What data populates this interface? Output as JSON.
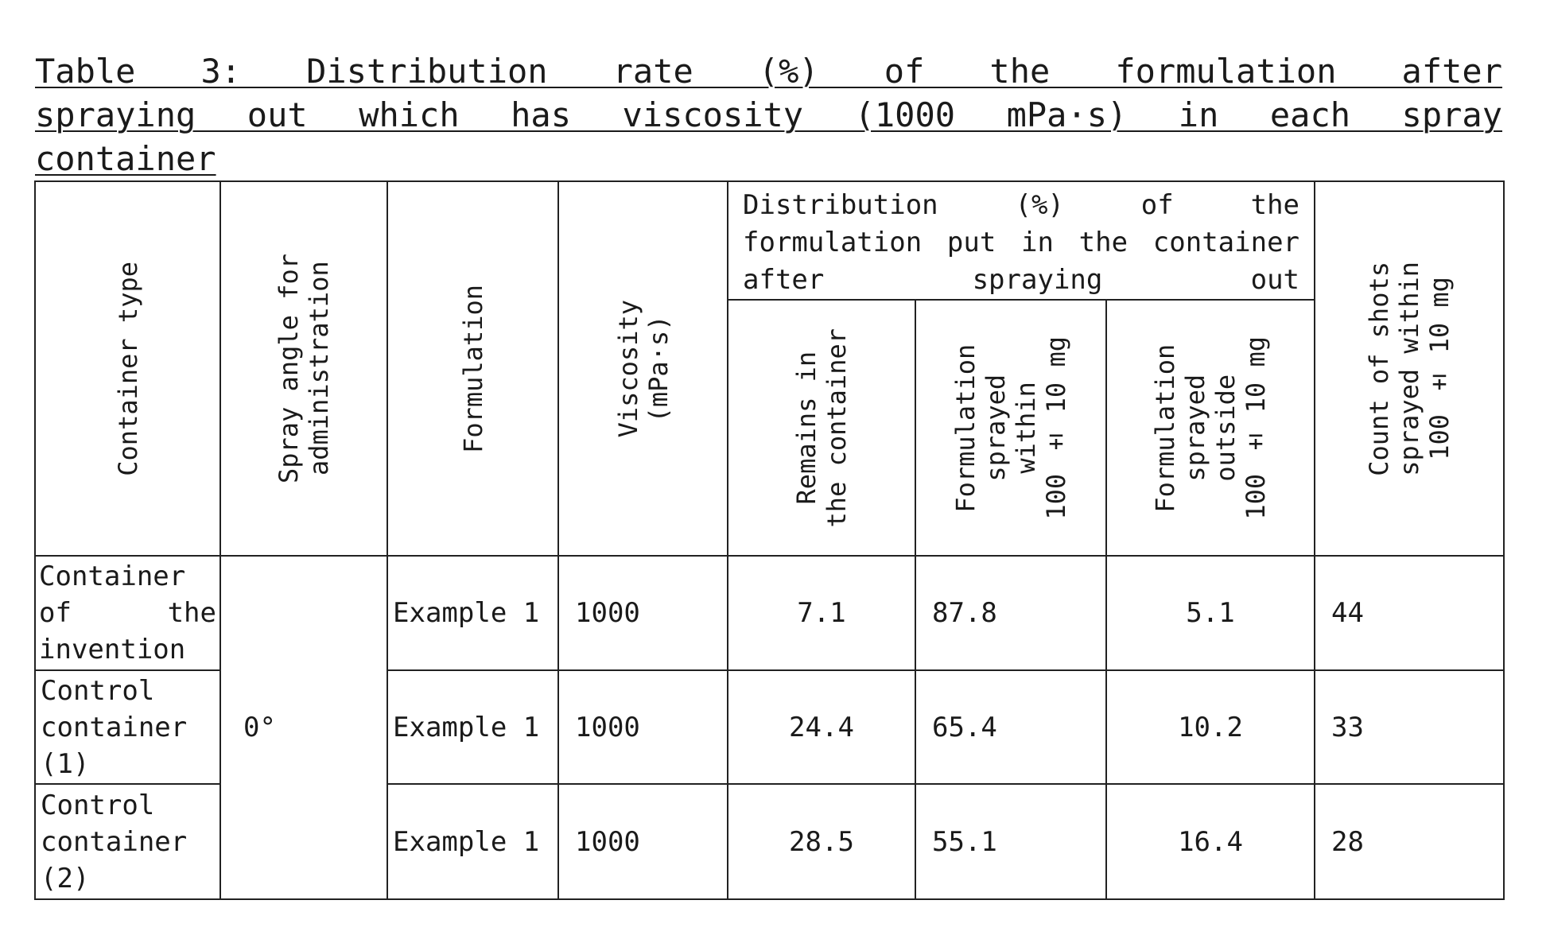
{
  "caption": {
    "line1": "Table 3: Distribution rate (%) of the formulation after",
    "line2": "spraying out which has viscosity (1000 mPa·s) in each spray",
    "line3": "container"
  },
  "columns": {
    "container_type": "Container type",
    "spray_angle": "Spray angle for\nadministration",
    "formulation": "Formulation",
    "viscosity": "Viscosity\n(mPa·s)",
    "distribution_group": "Distribution (%) of the formulation put in the container after spraying out",
    "remains": "Remains in\nthe container",
    "sprayed_within": "Formulation\nsprayed\nwithin\n100 ± 10 mg",
    "sprayed_outside": "Formulation\nsprayed\noutside\n100 ± 10 mg",
    "count": "Count of shots\nsprayed within\n100 ± 10 mg"
  },
  "spray_angle_value": "0°",
  "rows": [
    {
      "container": "Container of the invention",
      "formulation": "Example 1",
      "viscosity": "1000",
      "remains": "7.1",
      "within": "87.8",
      "outside": "5.1",
      "count": "44"
    },
    {
      "container": "Control container (1)",
      "formulation": "Example 1",
      "viscosity": "1000",
      "remains": "24.4",
      "within": "65.4",
      "outside": "10.2",
      "count": "33"
    },
    {
      "container": "Control container (2)",
      "formulation": "Example 1",
      "viscosity": "1000",
      "remains": "28.5",
      "within": "55.1",
      "outside": "16.4",
      "count": "28"
    }
  ]
}
